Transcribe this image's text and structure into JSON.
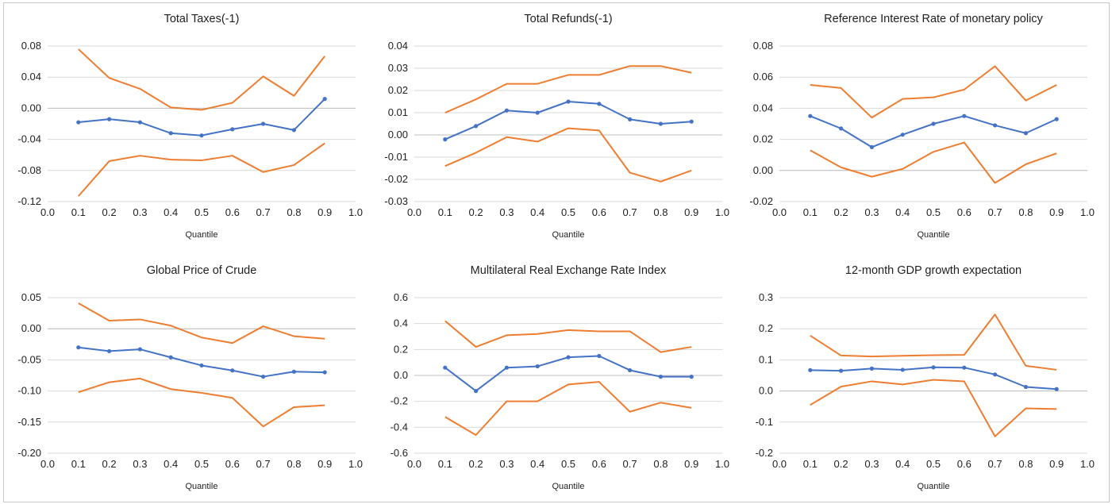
{
  "chart_data": [
    {
      "type": "line",
      "title": "Total Taxes(-1)",
      "xlabel": "Quantile",
      "ylabel": "",
      "ylim": [
        -0.12,
        0.08
      ],
      "xlim": [
        0.0,
        1.0
      ],
      "y_ticks": [
        "-0.12",
        "-0.08",
        "-0.04",
        "0.00",
        "0.04",
        "0.08"
      ],
      "x_ticks": [
        "0.0",
        "0.1",
        "0.2",
        "0.3",
        "0.4",
        "0.5",
        "0.6",
        "0.7",
        "0.8",
        "0.9",
        "1.0"
      ],
      "grid": true,
      "x": [
        0.1,
        0.2,
        0.3,
        0.4,
        0.5,
        0.6,
        0.7,
        0.8,
        0.9
      ],
      "series": [
        {
          "values": [
            -0.018,
            -0.014,
            -0.018,
            -0.032,
            -0.035,
            -0.027,
            -0.02,
            -0.028,
            0.012
          ],
          "color": "#4472C4",
          "markers": true
        },
        {
          "values": [
            0.076,
            0.039,
            0.025,
            0.001,
            -0.002,
            0.007,
            0.041,
            0.016,
            0.067
          ],
          "color": "#ED7D31",
          "markers": false
        },
        {
          "values": [
            -0.113,
            -0.068,
            -0.061,
            -0.066,
            -0.067,
            -0.061,
            -0.082,
            -0.073,
            -0.045
          ],
          "color": "#ED7D31",
          "markers": false
        }
      ]
    },
    {
      "type": "line",
      "title": "Total Refunds(-1)",
      "xlabel": "Quantile",
      "ylabel": "",
      "ylim": [
        -0.03,
        0.04
      ],
      "xlim": [
        0.0,
        1.0
      ],
      "y_ticks": [
        "-0.03",
        "-0.02",
        "-0.01",
        "0.00",
        "0.01",
        "0.02",
        "0.03",
        "0.04"
      ],
      "x_ticks": [
        "0.0",
        "0.1",
        "0.2",
        "0.3",
        "0.4",
        "0.5",
        "0.6",
        "0.7",
        "0.8",
        "0.9",
        "1.0"
      ],
      "grid": true,
      "x": [
        0.1,
        0.2,
        0.3,
        0.4,
        0.5,
        0.6,
        0.7,
        0.8,
        0.9
      ],
      "series": [
        {
          "values": [
            -0.002,
            0.004,
            0.011,
            0.01,
            0.015,
            0.014,
            0.007,
            0.005,
            0.006
          ],
          "color": "#4472C4",
          "markers": true
        },
        {
          "values": [
            0.01,
            0.016,
            0.023,
            0.023,
            0.027,
            0.027,
            0.031,
            0.031,
            0.028
          ],
          "color": "#ED7D31",
          "markers": false
        },
        {
          "values": [
            -0.014,
            -0.008,
            -0.001,
            -0.003,
            0.003,
            0.002,
            -0.017,
            -0.021,
            -0.016
          ],
          "color": "#ED7D31",
          "markers": false
        }
      ]
    },
    {
      "type": "line",
      "title": "Reference Interest Rate of monetary policy",
      "xlabel": "Quantile",
      "ylabel": "",
      "ylim": [
        -0.02,
        0.08
      ],
      "xlim": [
        0.0,
        1.0
      ],
      "y_ticks": [
        "-0.02",
        "0.00",
        "0.02",
        "0.04",
        "0.06",
        "0.08"
      ],
      "x_ticks": [
        "0.0",
        "0.1",
        "0.2",
        "0.3",
        "0.4",
        "0.5",
        "0.6",
        "0.7",
        "0.8",
        "0.9",
        "1.0"
      ],
      "grid": true,
      "x": [
        0.1,
        0.2,
        0.3,
        0.4,
        0.5,
        0.6,
        0.7,
        0.8,
        0.9
      ],
      "series": [
        {
          "values": [
            0.035,
            0.027,
            0.015,
            0.023,
            0.03,
            0.035,
            0.029,
            0.024,
            0.033
          ],
          "color": "#4472C4",
          "markers": true
        },
        {
          "values": [
            0.055,
            0.053,
            0.034,
            0.046,
            0.047,
            0.052,
            0.067,
            0.045,
            0.055
          ],
          "color": "#ED7D31",
          "markers": false
        },
        {
          "values": [
            0.013,
            0.002,
            -0.004,
            0.001,
            0.012,
            0.018,
            -0.008,
            0.004,
            0.011
          ],
          "color": "#ED7D31",
          "markers": false
        }
      ]
    },
    {
      "type": "line",
      "title": "Global Price of Crude",
      "xlabel": "Quantile",
      "ylabel": "",
      "ylim": [
        -0.2,
        0.05
      ],
      "xlim": [
        0.0,
        1.0
      ],
      "y_ticks": [
        "-0.20",
        "-0.15",
        "-0.10",
        "-0.05",
        "0.00",
        "0.05"
      ],
      "x_ticks": [
        "0.0",
        "0.1",
        "0.2",
        "0.3",
        "0.4",
        "0.5",
        "0.6",
        "0.7",
        "0.8",
        "0.9",
        "1.0"
      ],
      "grid": true,
      "x": [
        0.1,
        0.2,
        0.3,
        0.4,
        0.5,
        0.6,
        0.7,
        0.8,
        0.9
      ],
      "series": [
        {
          "values": [
            -0.03,
            -0.036,
            -0.033,
            -0.046,
            -0.059,
            -0.067,
            -0.077,
            -0.069,
            -0.07
          ],
          "color": "#4472C4",
          "markers": true
        },
        {
          "values": [
            0.041,
            0.013,
            0.015,
            0.005,
            -0.014,
            -0.023,
            0.004,
            -0.012,
            -0.016
          ],
          "color": "#ED7D31",
          "markers": false
        },
        {
          "values": [
            -0.102,
            -0.086,
            -0.08,
            -0.097,
            -0.103,
            -0.111,
            -0.157,
            -0.126,
            -0.123
          ],
          "color": "#ED7D31",
          "markers": false
        }
      ]
    },
    {
      "type": "line",
      "title": "Multilateral Real Exchange Rate Index",
      "xlabel": "Quantile",
      "ylabel": "",
      "ylim": [
        -0.6,
        0.6
      ],
      "xlim": [
        0.0,
        1.0
      ],
      "y_ticks": [
        "-0.6",
        "-0.4",
        "-0.2",
        "0.0",
        "0.2",
        "0.4",
        "0.6"
      ],
      "x_ticks": [
        "0.0",
        "0.1",
        "0.2",
        "0.3",
        "0.4",
        "0.5",
        "0.6",
        "0.7",
        "0.8",
        "0.9",
        "1.0"
      ],
      "grid": true,
      "x": [
        0.1,
        0.2,
        0.3,
        0.4,
        0.5,
        0.6,
        0.7,
        0.8,
        0.9
      ],
      "series": [
        {
          "values": [
            0.06,
            -0.12,
            0.06,
            0.07,
            0.14,
            0.15,
            0.04,
            -0.01,
            -0.01
          ],
          "color": "#4472C4",
          "markers": true
        },
        {
          "values": [
            0.42,
            0.22,
            0.31,
            0.32,
            0.35,
            0.34,
            0.34,
            0.18,
            0.22
          ],
          "color": "#ED7D31",
          "markers": false
        },
        {
          "values": [
            -0.32,
            -0.46,
            -0.2,
            -0.2,
            -0.07,
            -0.05,
            -0.28,
            -0.21,
            -0.25
          ],
          "color": "#ED7D31",
          "markers": false
        }
      ]
    },
    {
      "type": "line",
      "title": "12-month GDP growth expectation",
      "xlabel": "Quantile",
      "ylabel": "",
      "ylim": [
        -0.2,
        0.3
      ],
      "xlim": [
        0.0,
        1.0
      ],
      "y_ticks": [
        "-0.2",
        "-0.1",
        "0.0",
        "0.1",
        "0.2",
        "0.3"
      ],
      "x_ticks": [
        "0.0",
        "0.1",
        "0.2",
        "0.3",
        "0.4",
        "0.5",
        "0.6",
        "0.7",
        "0.8",
        "0.9",
        "1.0"
      ],
      "grid": true,
      "x": [
        0.1,
        0.2,
        0.3,
        0.4,
        0.5,
        0.6,
        0.7,
        0.8,
        0.9
      ],
      "series": [
        {
          "values": [
            0.067,
            0.065,
            0.072,
            0.068,
            0.076,
            0.075,
            0.053,
            0.013,
            0.006
          ],
          "color": "#4472C4",
          "markers": true
        },
        {
          "values": [
            0.178,
            0.114,
            0.111,
            0.113,
            0.115,
            0.116,
            0.246,
            0.081,
            0.068
          ],
          "color": "#ED7D31",
          "markers": false
        },
        {
          "values": [
            -0.045,
            0.014,
            0.031,
            0.021,
            0.036,
            0.031,
            -0.146,
            -0.056,
            -0.058
          ],
          "color": "#ED7D31",
          "markers": false
        }
      ]
    }
  ]
}
